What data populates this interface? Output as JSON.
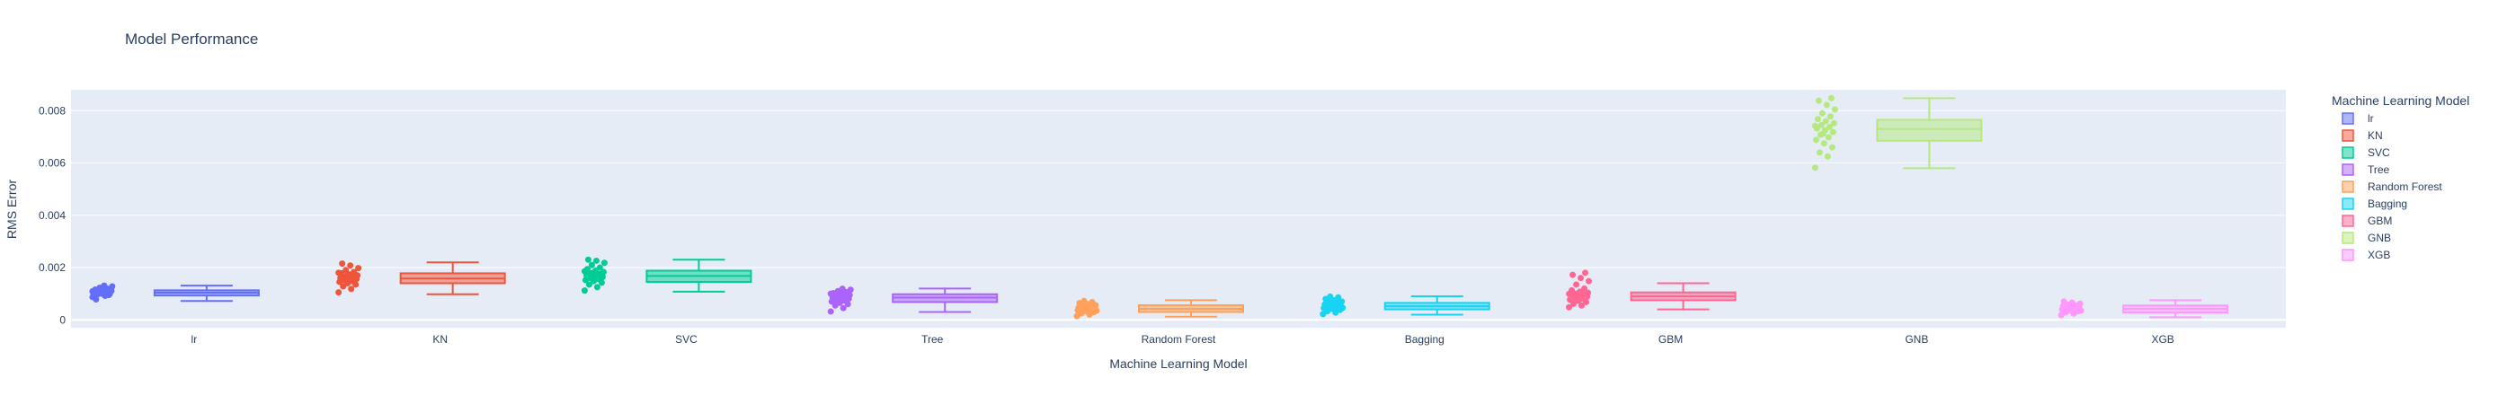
{
  "chart_data": {
    "type": "box",
    "title": "Model Performance",
    "xlabel": "Machine Learning Model",
    "ylabel": "RMS Error",
    "ylim": [
      -0.0003,
      0.0088
    ],
    "yticks": [
      0,
      0.002,
      0.004,
      0.006,
      0.008
    ],
    "ytick_labels": [
      "0",
      "0.002",
      "0.004",
      "0.006",
      "0.008"
    ],
    "legend_title": "Machine Learning Model",
    "legend_position": "right",
    "grid": true,
    "plot_bg": "#e5ecf6",
    "categories": [
      "lr",
      "KN",
      "SVC",
      "Tree",
      "Random Forest",
      "Bagging",
      "GBM",
      "GNB",
      "XGB"
    ],
    "series": [
      {
        "name": "lr",
        "color": "#636efa",
        "min": 0.00072,
        "q1": 0.00093,
        "median": 0.00104,
        "q3": 0.00113,
        "max": 0.00131,
        "points": [
          0.00087,
          0.00092,
          0.00096,
          0.00098,
          0.001,
          0.00101,
          0.00103,
          0.00104,
          0.00105,
          0.00106,
          0.00107,
          0.00108,
          0.0011,
          0.00111,
          0.00113,
          0.00116,
          0.00119,
          0.00123,
          0.00128,
          0.00131,
          0.00078,
          0.00095,
          0.00102,
          0.00109
        ]
      },
      {
        "name": "KN",
        "color": "#ef553b",
        "min": 0.00098,
        "q1": 0.0014,
        "median": 0.00158,
        "q3": 0.00178,
        "max": 0.0022,
        "points": [
          0.00105,
          0.00118,
          0.00128,
          0.00135,
          0.0014,
          0.00145,
          0.00148,
          0.00152,
          0.00156,
          0.00158,
          0.0016,
          0.00163,
          0.00166,
          0.0017,
          0.00174,
          0.00178,
          0.00183,
          0.0019,
          0.00198,
          0.00208,
          0.00215,
          0.0015,
          0.00168,
          0.0018
        ]
      },
      {
        "name": "SVC",
        "color": "#00cc96",
        "min": 0.00108,
        "q1": 0.00145,
        "median": 0.00168,
        "q3": 0.00188,
        "max": 0.0023,
        "points": [
          0.00112,
          0.00125,
          0.00135,
          0.00142,
          0.00148,
          0.00152,
          0.00156,
          0.0016,
          0.00164,
          0.00168,
          0.00171,
          0.00175,
          0.00179,
          0.00183,
          0.00188,
          0.00194,
          0.002,
          0.0021,
          0.00218,
          0.00226,
          0.0023,
          0.00158,
          0.00172,
          0.00186
        ]
      },
      {
        "name": "Tree",
        "color": "#ab63fa",
        "min": 0.0003,
        "q1": 0.00068,
        "median": 0.00085,
        "q3": 0.00098,
        "max": 0.0012,
        "points": [
          0.00032,
          0.00045,
          0.00055,
          0.0006,
          0.00065,
          0.0007,
          0.00074,
          0.00078,
          0.00081,
          0.00084,
          0.00086,
          0.00089,
          0.00092,
          0.00095,
          0.00098,
          0.00102,
          0.00106,
          0.0011,
          0.00115,
          0.00119,
          0.00072,
          0.00088,
          0.00094,
          0.001
        ]
      },
      {
        "name": "Random Forest",
        "color": "#ffa15a",
        "min": 0.00012,
        "q1": 0.0003,
        "median": 0.00042,
        "q3": 0.00056,
        "max": 0.00075,
        "points": [
          0.00014,
          0.0002,
          0.00025,
          0.0003,
          0.00033,
          0.00036,
          0.00039,
          0.00041,
          0.00043,
          0.00045,
          0.00047,
          0.0005,
          0.00053,
          0.00056,
          0.0006,
          0.00064,
          0.00068,
          0.00072,
          0.00035,
          0.00044,
          0.00049,
          0.00058
        ]
      },
      {
        "name": "Bagging",
        "color": "#19d3f3",
        "min": 0.0002,
        "q1": 0.0004,
        "median": 0.00052,
        "q3": 0.00065,
        "max": 0.0009,
        "points": [
          0.00022,
          0.00028,
          0.00033,
          0.00038,
          0.00042,
          0.00045,
          0.00048,
          0.00051,
          0.00053,
          0.00056,
          0.00059,
          0.00062,
          0.00066,
          0.0007,
          0.00075,
          0.0008,
          0.00086,
          0.00089,
          0.00046,
          0.00054,
          0.00063,
          0.00071
        ]
      },
      {
        "name": "GBM",
        "color": "#ff6692",
        "min": 0.0004,
        "q1": 0.00075,
        "median": 0.0009,
        "q3": 0.00105,
        "max": 0.0014,
        "points": [
          0.00048,
          0.00055,
          0.00062,
          0.00068,
          0.00073,
          0.00077,
          0.00081,
          0.00085,
          0.00088,
          0.00091,
          0.00094,
          0.00097,
          0.001,
          0.00104,
          0.00108,
          0.00113,
          0.0012,
          0.00135,
          0.00148,
          0.0016,
          0.00172,
          0.0018,
          0.00086,
          0.00099
        ]
      },
      {
        "name": "GNB",
        "color": "#b6e880",
        "min": 0.0058,
        "q1": 0.00685,
        "median": 0.0073,
        "q3": 0.00765,
        "max": 0.00848,
        "points": [
          0.00582,
          0.00625,
          0.0064,
          0.0066,
          0.00675,
          0.00688,
          0.00698,
          0.00708,
          0.00718,
          0.00725,
          0.00732,
          0.00738,
          0.00745,
          0.00752,
          0.0076,
          0.00768,
          0.00778,
          0.0079,
          0.00805,
          0.00822,
          0.00838,
          0.00848,
          0.00712,
          0.00742
        ]
      },
      {
        "name": "XGB",
        "color": "#ff97ff",
        "min": 0.0001,
        "q1": 0.00028,
        "median": 0.00042,
        "q3": 0.00055,
        "max": 0.00075,
        "points": [
          0.00018,
          0.00024,
          0.00029,
          0.00033,
          0.00036,
          0.00039,
          0.00042,
          0.00044,
          0.00046,
          0.00049,
          0.00052,
          0.00055,
          0.00058,
          0.00062,
          0.00066,
          0.0007,
          0.0004,
          0.00048,
          0.00035,
          0.00053
        ]
      }
    ]
  }
}
